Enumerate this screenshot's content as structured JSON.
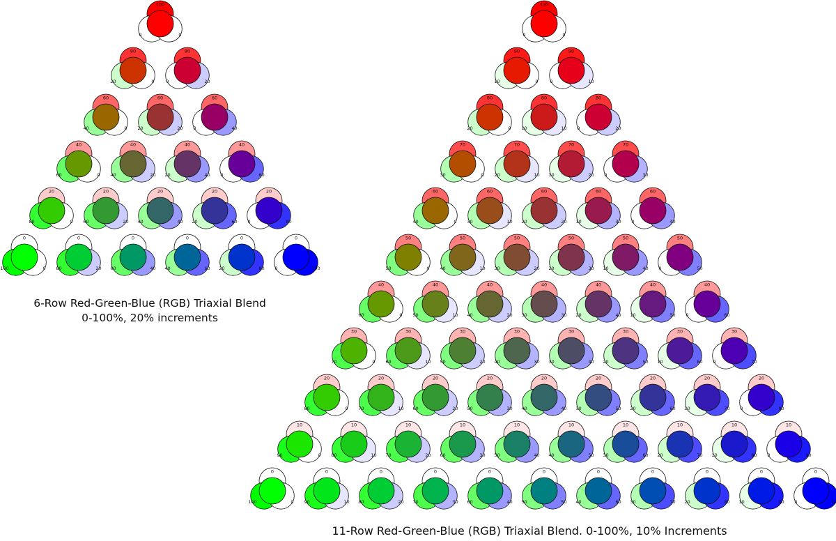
{
  "diagrams": [
    {
      "id": "six-row",
      "rows": 6,
      "step_percent": 20,
      "caption_lines": [
        "6-Row Red-Green-Blue (RGB) Triaxial Blend",
        "0-100%, 20% increments"
      ]
    },
    {
      "id": "eleven-row",
      "rows": 11,
      "step_percent": 10,
      "caption_lines": [
        "11-Row Red-Green-Blue (RGB) Triaxial Blend. 0-100%, 10% Increments"
      ]
    }
  ],
  "colors": {
    "red": "#ff0000",
    "green": "#00ff00",
    "blue": "#0000ff",
    "outline": "#111111"
  }
}
